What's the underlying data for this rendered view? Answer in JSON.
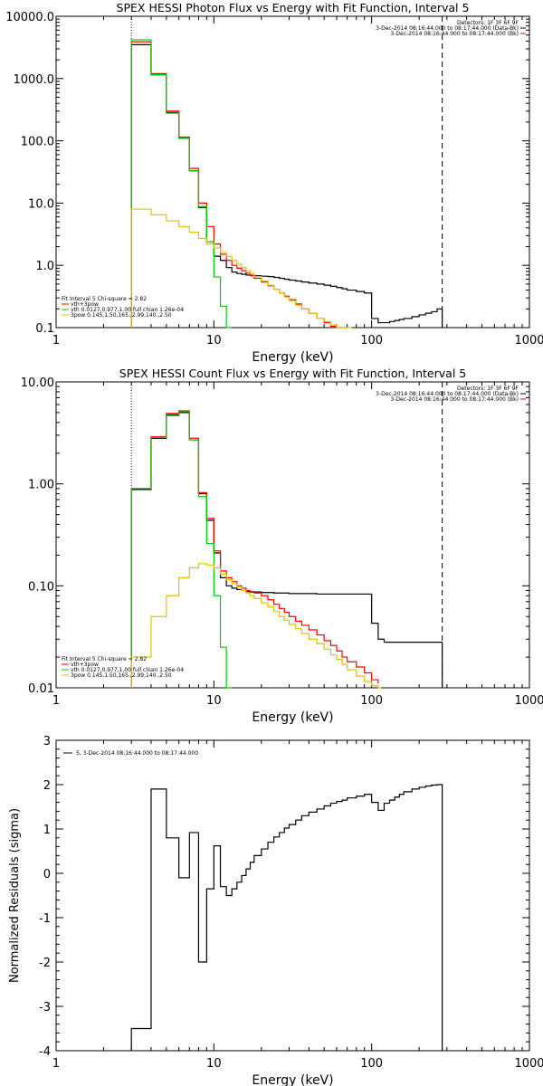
{
  "colors": {
    "data": "#000000",
    "total": "#ff0000",
    "thermal": "#00cc00",
    "powerlaw": "#e6c000"
  },
  "chart_data": [
    {
      "type": "line",
      "title": "SPEX HESSI Photon Flux vs Energy with Fit Function, Interval 5",
      "xlabel": "Energy (keV)",
      "ylabel": "",
      "xscale": "log",
      "yscale": "log",
      "xlim": [
        1,
        1000
      ],
      "ylim": [
        0.1,
        10000
      ],
      "xticks": [
        "1",
        "10",
        "100",
        "1000"
      ],
      "yticks": [
        "0.1",
        "1.0",
        "10.0",
        "100.0",
        "1000.0",
        "10000.0"
      ],
      "vlines": [
        {
          "x": 3,
          "style": "dotted"
        },
        {
          "x": 280,
          "style": "dashed"
        }
      ],
      "legend_top": [
        "Detectors: 1F 3F 6F 9F",
        "3-Dec-2014 08:16:44.000 to 08:17:44.000 (Data-Bk)",
        "3-Dec-2014 08:16:44.000 to 08:17:44.000 (Bk)"
      ],
      "legend_bottom": [
        "Fit Interval 5   Chi-square = 2.82",
        "vth+3pow",
        "vth 0.0127,0.977,1.00  full chian 1.26e-04",
        "3pow 0.145,1.50,165.,2.99,140.,2.50"
      ],
      "series": [
        {
          "color_key": "data",
          "edges": [
            3,
            4,
            5,
            6,
            7,
            8,
            9,
            10,
            11,
            12,
            13,
            14,
            15,
            16,
            17,
            18,
            20,
            22,
            24,
            26,
            28,
            30,
            33,
            36,
            40,
            45,
            50,
            55,
            60,
            65,
            70,
            80,
            90,
            100,
            110,
            120,
            130,
            140,
            150,
            160,
            180,
            200,
            220,
            240,
            260,
            280
          ],
          "values": [
            3500,
            1150,
            280,
            110,
            33,
            8.5,
            2.4,
            1.4,
            1.2,
            0.92,
            0.78,
            0.74,
            0.72,
            0.7,
            0.69,
            0.68,
            0.67,
            0.66,
            0.64,
            0.62,
            0.6,
            0.58,
            0.56,
            0.54,
            0.52,
            0.5,
            0.48,
            0.46,
            0.44,
            0.42,
            0.4,
            0.38,
            0.36,
            0.14,
            0.12,
            0.12,
            0.125,
            0.13,
            0.135,
            0.14,
            0.15,
            0.16,
            0.17,
            0.18,
            0.2
          ]
        },
        {
          "color_key": "total",
          "edges": [
            3,
            4,
            5,
            6,
            7,
            8,
            9,
            10,
            11,
            12,
            13,
            14,
            15,
            16,
            17,
            18,
            20,
            22,
            24,
            26,
            28,
            30,
            33,
            36,
            40,
            45,
            50,
            55,
            60,
            65,
            70
          ],
          "values": [
            3900,
            1200,
            300,
            115,
            36,
            10,
            4.2,
            2.2,
            1.5,
            1.2,
            1.0,
            0.9,
            0.82,
            0.75,
            0.68,
            0.62,
            0.54,
            0.47,
            0.41,
            0.36,
            0.32,
            0.28,
            0.24,
            0.2,
            0.17,
            0.14,
            0.12,
            0.105,
            0.1,
            0.1,
            0.1
          ]
        },
        {
          "color_key": "thermal",
          "edges": [
            3,
            4,
            5,
            6,
            7,
            8,
            9,
            10,
            11,
            12,
            13
          ],
          "values": [
            4200,
            1150,
            290,
            110,
            33,
            8.8,
            2.4,
            0.65,
            0.22,
            0.1,
            0.1
          ]
        },
        {
          "color_key": "powerlaw",
          "edges": [
            3,
            4,
            5,
            6,
            7,
            8,
            9,
            10,
            11,
            12,
            13,
            14,
            15,
            16,
            17,
            18,
            20,
            22,
            24,
            26,
            28,
            30,
            33,
            36,
            40,
            45,
            50,
            55,
            60,
            65,
            70,
            75
          ],
          "values": [
            8,
            6.5,
            5.2,
            4.2,
            3.4,
            2.7,
            2.2,
            1.9,
            1.6,
            1.4,
            1.2,
            1.05,
            0.92,
            0.82,
            0.74,
            0.66,
            0.56,
            0.48,
            0.41,
            0.36,
            0.31,
            0.27,
            0.23,
            0.2,
            0.17,
            0.14,
            0.125,
            0.11,
            0.1,
            0.1,
            0.1
          ]
        }
      ]
    },
    {
      "type": "line",
      "title": "SPEX HESSI Count Flux vs Energy with Fit Function, Interval 5",
      "xlabel": "Energy (keV)",
      "ylabel": "",
      "xscale": "log",
      "yscale": "log",
      "xlim": [
        1,
        1000
      ],
      "ylim": [
        0.01,
        10
      ],
      "xticks": [
        "1",
        "10",
        "100",
        "1000"
      ],
      "yticks": [
        "0.01",
        "0.10",
        "1.00",
        "10.00"
      ],
      "vlines": [
        {
          "x": 3,
          "style": "dotted"
        },
        {
          "x": 280,
          "style": "dashed"
        }
      ],
      "legend_top": [
        "Detectors: 1F 3F 6F 9F",
        "3-Dec-2014 08:16:44.000 to 08:17:44.000 (Data-Bk)",
        "3-Dec-2014 08:16:44.000 to 08:17:44.000 (Bk)"
      ],
      "legend_bottom": [
        "Fit Interval 5   Chi-square = 2.82",
        "vth+3pow",
        "vth 0.0127,0.977,1.00  full chian 1.26e-04",
        "3pow 0.145,1.50,165.,2.99,140.,2.50"
      ],
      "series": [
        {
          "color_key": "data",
          "edges": [
            3,
            4,
            5,
            6,
            7,
            8,
            9,
            10,
            11,
            12,
            13,
            14,
            15,
            16,
            17,
            18,
            20,
            22,
            24,
            26,
            28,
            30,
            33,
            36,
            40,
            45,
            50,
            55,
            60,
            65,
            70,
            80,
            90,
            100,
            110,
            120,
            130,
            140,
            150,
            160,
            180,
            200,
            220,
            240,
            260,
            280
          ],
          "values": [
            0.88,
            2.8,
            4.7,
            5.0,
            2.7,
            0.8,
            0.44,
            0.21,
            0.12,
            0.1,
            0.095,
            0.092,
            0.09,
            0.088,
            0.087,
            0.087,
            0.086,
            0.086,
            0.085,
            0.085,
            0.085,
            0.084,
            0.084,
            0.084,
            0.084,
            0.083,
            0.083,
            0.083,
            0.083,
            0.083,
            0.083,
            0.083,
            0.083,
            0.043,
            0.03,
            0.028,
            0.028,
            0.028,
            0.028,
            0.028,
            0.028,
            0.028,
            0.028,
            0.028,
            0.028
          ]
        },
        {
          "color_key": "total",
          "edges": [
            3,
            4,
            5,
            6,
            7,
            8,
            9,
            10,
            11,
            12,
            13,
            14,
            15,
            16,
            17,
            18,
            20,
            22,
            24,
            26,
            28,
            30,
            33,
            36,
            40,
            45,
            50,
            55,
            60,
            65,
            70,
            80,
            90,
            100,
            110
          ],
          "values": [
            0.9,
            2.9,
            4.9,
            5.2,
            2.8,
            0.82,
            0.46,
            0.22,
            0.14,
            0.12,
            0.11,
            0.1,
            0.095,
            0.09,
            0.088,
            0.085,
            0.08,
            0.073,
            0.066,
            0.06,
            0.055,
            0.05,
            0.045,
            0.041,
            0.037,
            0.033,
            0.029,
            0.026,
            0.023,
            0.02,
            0.018,
            0.016,
            0.014,
            0.012,
            0.011
          ]
        },
        {
          "color_key": "thermal",
          "edges": [
            3,
            4,
            5,
            6,
            7,
            8,
            9,
            10,
            11,
            12,
            13
          ],
          "values": [
            0.9,
            2.85,
            4.8,
            5.1,
            2.7,
            0.75,
            0.26,
            0.08,
            0.025,
            0.01,
            0.01
          ]
        },
        {
          "color_key": "powerlaw",
          "edges": [
            3,
            4,
            5,
            6,
            7,
            8,
            9,
            10,
            11,
            12,
            13,
            14,
            15,
            16,
            17,
            18,
            20,
            22,
            24,
            26,
            28,
            30,
            33,
            36,
            40,
            45,
            50,
            55,
            60,
            65,
            70,
            80,
            90,
            100,
            110,
            115
          ],
          "values": [
            0.02,
            0.05,
            0.08,
            0.12,
            0.15,
            0.165,
            0.16,
            0.15,
            0.13,
            0.115,
            0.105,
            0.097,
            0.09,
            0.085,
            0.08,
            0.075,
            0.068,
            0.062,
            0.056,
            0.05,
            0.046,
            0.042,
            0.038,
            0.034,
            0.03,
            0.027,
            0.024,
            0.021,
            0.019,
            0.017,
            0.015,
            0.013,
            0.0115,
            0.0105,
            0.01,
            0.01
          ]
        }
      ]
    },
    {
      "type": "line",
      "title": "",
      "xlabel": "Energy (keV)",
      "ylabel": "Normalized Residuals (sigma)",
      "xscale": "log",
      "yscale": "linear",
      "xlim": [
        1,
        1000
      ],
      "ylim": [
        -4,
        3
      ],
      "xticks": [
        "1",
        "10",
        "100",
        "1000"
      ],
      "yticks": [
        "-4",
        "-3",
        "-2",
        "-1",
        "0",
        "1",
        "2",
        "3"
      ],
      "legend_top": [
        "5, 3-Dec-2014 08:16:44.000 to 08:17:44.000"
      ],
      "series": [
        {
          "color_key": "data",
          "edges": [
            3,
            4,
            5,
            6,
            7,
            8,
            9,
            10,
            11,
            12,
            13,
            14,
            15,
            16,
            17,
            18,
            20,
            22,
            24,
            26,
            28,
            30,
            33,
            36,
            40,
            45,
            50,
            55,
            60,
            65,
            70,
            80,
            90,
            100,
            110,
            120,
            130,
            140,
            150,
            160,
            180,
            200,
            220,
            240,
            260,
            280
          ],
          "values": [
            -3.5,
            1.9,
            0.8,
            -0.1,
            0.92,
            -2.0,
            -0.35,
            0.62,
            -0.3,
            -0.5,
            -0.35,
            -0.2,
            -0.05,
            0.1,
            0.25,
            0.4,
            0.55,
            0.7,
            0.82,
            0.92,
            1.02,
            1.1,
            1.2,
            1.3,
            1.38,
            1.45,
            1.52,
            1.58,
            1.62,
            1.65,
            1.7,
            1.74,
            1.78,
            1.6,
            1.42,
            1.58,
            1.65,
            1.72,
            1.78,
            1.84,
            1.9,
            1.94,
            1.97,
            1.99,
            2.0
          ]
        }
      ]
    }
  ]
}
